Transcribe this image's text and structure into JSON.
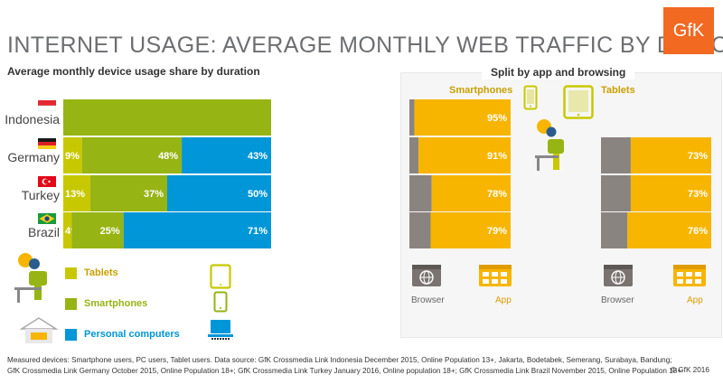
{
  "header": {
    "title": "INTERNET USAGE:  AVERAGE MONTHLY WEB TRAFFIC BY DEVICE",
    "logo": "GfK"
  },
  "colors": {
    "tablets": "#c8c800",
    "smartphones": "#96b414",
    "personal_computers": "#0096d7",
    "app": "#f7b500",
    "browser": "#8a8480",
    "gfk_orange": "#f26922"
  },
  "icons": [
    "flag-indonesia-icon",
    "flag-germany-icon",
    "flag-turkey-icon",
    "flag-brazil-icon",
    "person-sitting-icon",
    "tablet-icon",
    "smartphone-icon",
    "laptop-icon",
    "browser-globe-icon",
    "app-grid-icon"
  ],
  "chart_data": [
    {
      "type": "bar",
      "orientation": "horizontal",
      "stacked": true,
      "title": "Average monthly device usage share by duration",
      "categories": [
        "Indonesia",
        "Germany",
        "Turkey",
        "Brazil"
      ],
      "series": [
        {
          "name": "Tablets",
          "values": [
            0,
            9,
            13,
            4
          ],
          "labels": [
            "",
            "9%",
            "13%",
            "4%"
          ]
        },
        {
          "name": "Smartphones",
          "values": [
            100,
            48,
            37,
            25
          ],
          "labels": [
            "",
            "48%",
            "37%",
            "25%"
          ]
        },
        {
          "name": "Personal computers",
          "values": [
            0,
            43,
            50,
            71
          ],
          "labels": [
            "",
            "43%",
            "50%",
            "71%"
          ]
        }
      ],
      "legend": "bottom-left",
      "xlim": [
        0,
        100
      ]
    },
    {
      "type": "bar",
      "orientation": "horizontal",
      "stacked": true,
      "title": "Split by app and browsing",
      "panel": "Smartphones",
      "categories": [
        "Indonesia",
        "Germany",
        "Turkey",
        "Brazil"
      ],
      "series": [
        {
          "name": "Browser",
          "values": [
            5,
            9,
            22,
            21
          ]
        },
        {
          "name": "App",
          "values": [
            95,
            91,
            78,
            79
          ],
          "labels": [
            "95%",
            "91%",
            "78%",
            "79%"
          ]
        }
      ],
      "xlim": [
        0,
        100
      ]
    },
    {
      "type": "bar",
      "orientation": "horizontal",
      "stacked": true,
      "panel": "Tablets",
      "categories": [
        "Germany",
        "Turkey",
        "Brazil"
      ],
      "series": [
        {
          "name": "Browser",
          "values": [
            27,
            27,
            24
          ]
        },
        {
          "name": "App",
          "values": [
            73,
            73,
            76
          ],
          "labels": [
            "73%",
            "73%",
            "76%"
          ]
        }
      ],
      "xlim": [
        0,
        100
      ]
    }
  ],
  "left_chart": {
    "subtitle": "Average monthly device usage share by duration",
    "countries": [
      "Indonesia",
      "Germany",
      "Turkey",
      "Brazil"
    ],
    "legend": {
      "tablets": "Tablets",
      "smartphones": "Smartphones",
      "pcs": "Personal computers"
    }
  },
  "right_chart": {
    "title": "Split by app and browsing",
    "smartphones_label": "Smartphones",
    "tablets_label": "Tablets",
    "browser_label": "Browser",
    "app_label": "App"
  },
  "footnote": {
    "line1": "Measured devices: Smartphone users, PC users, Tablet users. Data source: GfK Crossmedia Link Indonesia December 2015, Online Population 13+, Jakarta, Bodetabek, Semerang, Surabaya, Bandung;",
    "line2": "GfK Crossmedia Link Germany October 2015, Online Population 18+; GfK Crossmedia Link Turkey January 2016, Online population 18+; GfK Crossmedia Link Brazil November 2015, Online Population 18+",
    "copyright": "© GfK 2016"
  }
}
